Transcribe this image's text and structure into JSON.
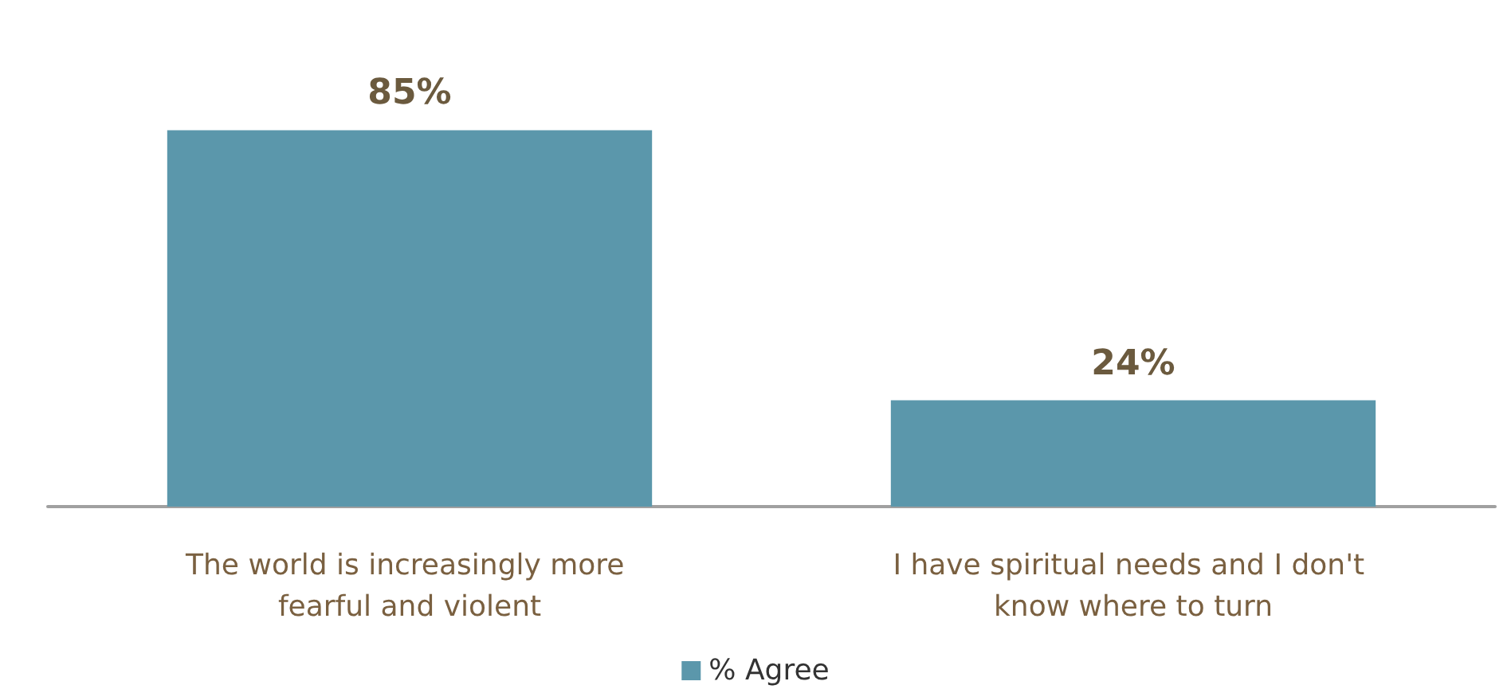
{
  "chart_data": {
    "type": "bar",
    "categories": [
      "The world is increasingly more fearful and violent",
      "I have spiritual needs and I don't know where to turn"
    ],
    "series": [
      {
        "name": "% Agree",
        "color": "#5b97ab",
        "values": [
          85,
          24
        ],
        "value_labels": [
          "85%",
          "24%"
        ]
      }
    ],
    "legend": "bottom",
    "grid": false
  }
}
